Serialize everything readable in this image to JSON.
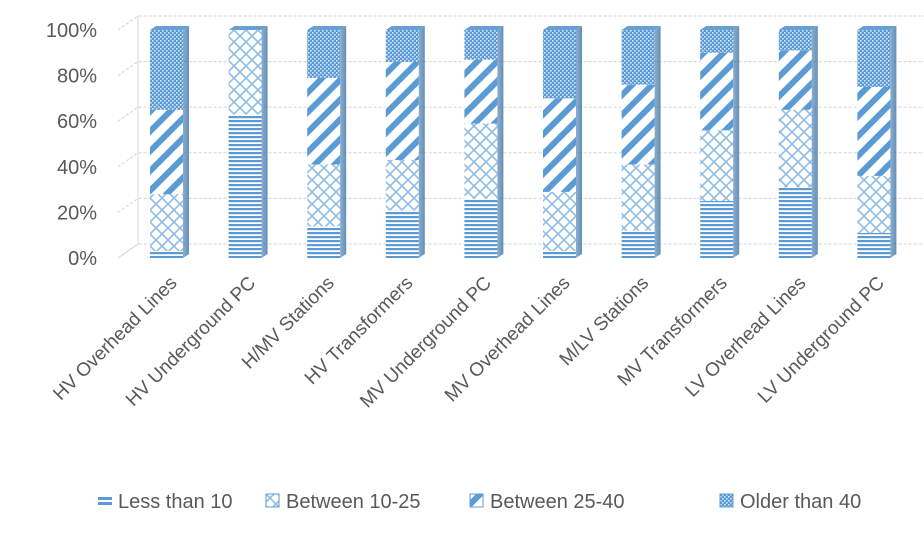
{
  "chart_data": {
    "type": "bar",
    "stacked": true,
    "percent": true,
    "three_d": true,
    "categories": [
      "HV Overhead Lines",
      "HV  Underground PC",
      "H/MV  Stations",
      "HV Transformers",
      "MV  Underground PC",
      "MV Overhead Lines",
      "M/LV Stations",
      "MV Transformers",
      "LV Overhead Lines",
      "LV  Underground PC"
    ],
    "series": [
      {
        "name": "Less than 10",
        "values": [
          3,
          63,
          14,
          21,
          26,
          3,
          12,
          25,
          31,
          11
        ],
        "color": "#5b9bd5",
        "pattern": "horizontal-lines"
      },
      {
        "name": "Between 10-25",
        "values": [
          25,
          37,
          27,
          22,
          33,
          26,
          29,
          31,
          34,
          25
        ],
        "color": "#5b9bd5",
        "pattern": "diagonal-cross"
      },
      {
        "name": "Between 25-40",
        "values": [
          37,
          0,
          38,
          43,
          28,
          41,
          35,
          34,
          26,
          39
        ],
        "color": "#5b9bd5",
        "pattern": "wide-diagonal"
      },
      {
        "name": "Older than 40",
        "values": [
          35,
          0,
          21,
          14,
          13,
          30,
          24,
          10,
          9,
          25
        ],
        "color": "#5b9bd5",
        "pattern": "dots"
      }
    ],
    "yticks": [
      "0%",
      "20%",
      "40%",
      "60%",
      "80%",
      "100%"
    ],
    "ylim": [
      0,
      100
    ],
    "grid": true,
    "legend_position": "bottom"
  }
}
